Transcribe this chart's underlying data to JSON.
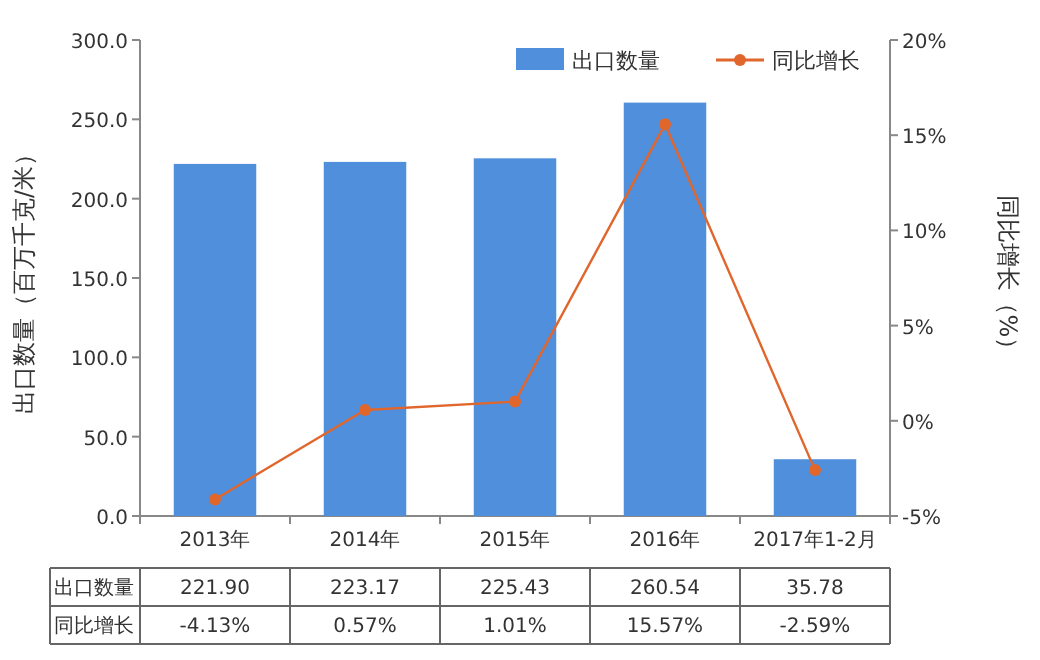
{
  "chart_data": {
    "type": "bar",
    "categories": [
      "2013年",
      "2014年",
      "2015年",
      "2016年",
      "2017年1-2月"
    ],
    "series": [
      {
        "name": "出口数量",
        "color": "#4f8fdc",
        "values": [
          221.9,
          223.17,
          225.43,
          260.54,
          35.78
        ]
      },
      {
        "name": "同比增长",
        "type": "line",
        "axis": "y2",
        "color": "#e0662c",
        "marker": "circle",
        "values": [
          -4.13,
          0.57,
          1.01,
          15.57,
          -2.59
        ]
      }
    ],
    "ylabel": "出口数量（百万千克/米）",
    "y2label": "同比增长（%）",
    "ylim": [
      0,
      300
    ],
    "yticks": [
      {
        "value": 0,
        "label": "0.0"
      },
      {
        "value": 50,
        "label": "50.0"
      },
      {
        "value": 100,
        "label": "100.0"
      },
      {
        "value": 150,
        "label": "150.0"
      },
      {
        "value": 200,
        "label": "200.0"
      },
      {
        "value": 250,
        "label": "250.0"
      },
      {
        "value": 300,
        "label": "300.0"
      }
    ],
    "y2lim": [
      -5,
      20
    ],
    "y2ticks": [
      {
        "value": -5,
        "label": "-5%"
      },
      {
        "value": 0,
        "label": "0%"
      },
      {
        "value": 5,
        "label": "5%"
      },
      {
        "value": 10,
        "label": "10%"
      },
      {
        "value": 15,
        "label": "15%"
      },
      {
        "value": 20,
        "label": "20%"
      }
    ],
    "value_labels": [
      [
        "221.90",
        "223.17",
        "225.43",
        "260.54",
        "35.78"
      ],
      [
        "-4.13%",
        "0.57%",
        "1.01%",
        "15.57%",
        "-2.59%"
      ]
    ],
    "legend": "top right",
    "grid": false
  }
}
